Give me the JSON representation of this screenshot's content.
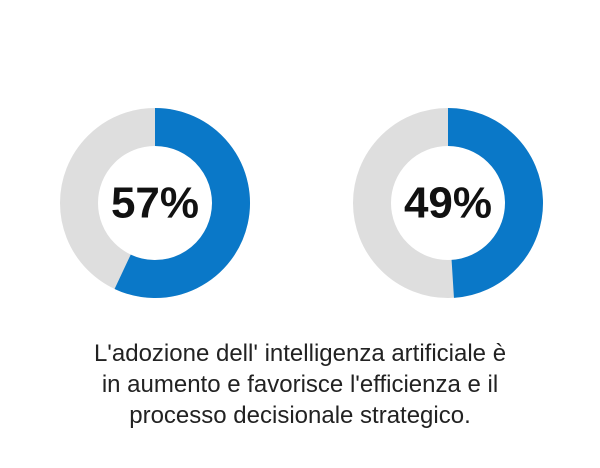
{
  "chart_data": [
    {
      "type": "pie",
      "variant": "donut",
      "values": [
        57,
        43
      ],
      "label": "57%",
      "colors": [
        "#0a78c8",
        "#dedede"
      ]
    },
    {
      "type": "pie",
      "variant": "donut",
      "values": [
        49,
        51
      ],
      "label": "49%",
      "colors": [
        "#0a78c8",
        "#dedede"
      ]
    }
  ],
  "caption": {
    "line1": "L'adozione dell' intelligenza artificiale è",
    "line2": "in aumento e favorisce l'efficienza e il",
    "line3": "processo decisionale strategico."
  }
}
